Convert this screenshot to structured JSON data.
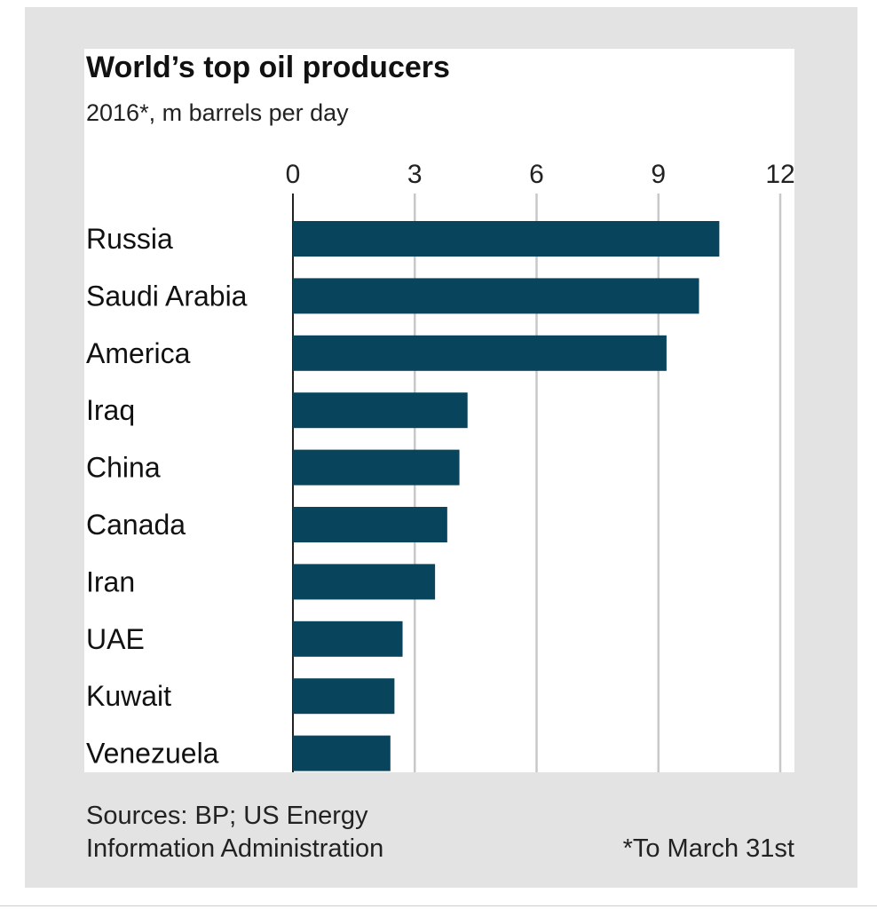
{
  "chart_data": {
    "type": "bar",
    "orientation": "horizontal",
    "title": "World’s top oil producers",
    "subtitle": "2016*, m barrels per day",
    "categories": [
      "Russia",
      "Saudi Arabia",
      "America",
      "Iraq",
      "China",
      "Canada",
      "Iran",
      "UAE",
      "Kuwait",
      "Venezuela"
    ],
    "values": [
      10.5,
      10.0,
      9.2,
      4.3,
      4.1,
      3.8,
      3.5,
      2.7,
      2.5,
      2.4
    ],
    "xlim": [
      0,
      12
    ],
    "xticks": [
      0,
      3,
      6,
      9,
      12
    ],
    "tick_labels": [
      "0",
      "3",
      "6",
      "9",
      "12"
    ],
    "grid": true,
    "bar_color": "#08445c",
    "source": [
      "Sources: BP; US Energy",
      "Information Administration"
    ],
    "footnote": "*To March 31st"
  }
}
